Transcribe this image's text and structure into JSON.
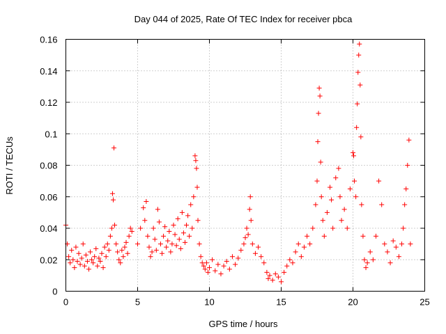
{
  "chart_data": {
    "type": "scatter",
    "title": "Day 044 of 2025, Rate Of TEC Index for receiver pbca",
    "xlabel": "GPS time / hours",
    "ylabel": "ROTI / TECUs",
    "xlim": [
      0,
      25
    ],
    "ylim": [
      0,
      0.16
    ],
    "xticks": [
      0,
      5,
      10,
      15,
      20,
      25
    ],
    "xtick_labels": [
      "0",
      "5",
      "10",
      "15",
      "20",
      "25"
    ],
    "yticks": [
      0,
      0.02,
      0.04,
      0.06,
      0.08,
      0.1,
      0.12,
      0.14,
      0.16
    ],
    "ytick_labels": [
      "0",
      "0.02",
      "0.04",
      "0.06",
      "0.08",
      "0.1",
      "0.12",
      "0.14",
      "0.16"
    ],
    "grid": true,
    "marker": "+",
    "color": "#ff0000",
    "series": [
      {
        "name": "ROTI",
        "points": [
          [
            0.0,
            0.042
          ],
          [
            0.1,
            0.03
          ],
          [
            0.2,
            0.022
          ],
          [
            0.3,
            0.018
          ],
          [
            0.4,
            0.026
          ],
          [
            0.5,
            0.02
          ],
          [
            0.6,
            0.015
          ],
          [
            0.7,
            0.028
          ],
          [
            0.8,
            0.019
          ],
          [
            0.9,
            0.024
          ],
          [
            1.0,
            0.017
          ],
          [
            1.1,
            0.021
          ],
          [
            1.2,
            0.03
          ],
          [
            1.3,
            0.016
          ],
          [
            1.4,
            0.023
          ],
          [
            1.5,
            0.019
          ],
          [
            1.6,
            0.014
          ],
          [
            1.7,
            0.025
          ],
          [
            1.8,
            0.02
          ],
          [
            1.9,
            0.018
          ],
          [
            2.0,
            0.022
          ],
          [
            2.1,
            0.027
          ],
          [
            2.2,
            0.016
          ],
          [
            2.3,
            0.021
          ],
          [
            2.4,
            0.019
          ],
          [
            2.5,
            0.024
          ],
          [
            2.6,
            0.015
          ],
          [
            2.7,
            0.028
          ],
          [
            2.8,
            0.022
          ],
          [
            2.9,
            0.03
          ],
          [
            3.0,
            0.026
          ],
          [
            3.1,
            0.035
          ],
          [
            3.2,
            0.04
          ],
          [
            3.25,
            0.062
          ],
          [
            3.3,
            0.058
          ],
          [
            3.35,
            0.091
          ],
          [
            3.4,
            0.042
          ],
          [
            3.5,
            0.03
          ],
          [
            3.6,
            0.025
          ],
          [
            3.7,
            0.02
          ],
          [
            3.8,
            0.018
          ],
          [
            3.9,
            0.026
          ],
          [
            4.0,
            0.022
          ],
          [
            4.1,
            0.028
          ],
          [
            4.2,
            0.031
          ],
          [
            4.3,
            0.024
          ],
          [
            4.4,
            0.035
          ],
          [
            4.5,
            0.04
          ],
          [
            4.6,
            0.038
          ],
          [
            5.0,
            0.03
          ],
          [
            5.2,
            0.04
          ],
          [
            5.4,
            0.053
          ],
          [
            5.5,
            0.045
          ],
          [
            5.6,
            0.057
          ],
          [
            5.7,
            0.035
          ],
          [
            5.8,
            0.028
          ],
          [
            5.9,
            0.022
          ],
          [
            6.0,
            0.025
          ],
          [
            6.1,
            0.04
          ],
          [
            6.2,
            0.033
          ],
          [
            6.3,
            0.026
          ],
          [
            6.4,
            0.052
          ],
          [
            6.5,
            0.044
          ],
          [
            6.6,
            0.03
          ],
          [
            6.7,
            0.024
          ],
          [
            6.8,
            0.035
          ],
          [
            6.9,
            0.041
          ],
          [
            7.0,
            0.028
          ],
          [
            7.1,
            0.032
          ],
          [
            7.2,
            0.038
          ],
          [
            7.3,
            0.025
          ],
          [
            7.4,
            0.03
          ],
          [
            7.5,
            0.042
          ],
          [
            7.6,
            0.036
          ],
          [
            7.7,
            0.029
          ],
          [
            7.8,
            0.046
          ],
          [
            7.9,
            0.033
          ],
          [
            8.0,
            0.027
          ],
          [
            8.1,
            0.05
          ],
          [
            8.2,
            0.037
          ],
          [
            8.3,
            0.031
          ],
          [
            8.4,
            0.042
          ],
          [
            8.5,
            0.048
          ],
          [
            8.6,
            0.035
          ],
          [
            8.7,
            0.055
          ],
          [
            8.8,
            0.04
          ],
          [
            8.9,
            0.06
          ],
          [
            9.0,
            0.086
          ],
          [
            9.05,
            0.083
          ],
          [
            9.1,
            0.078
          ],
          [
            9.15,
            0.066
          ],
          [
            9.2,
            0.045
          ],
          [
            9.3,
            0.03
          ],
          [
            9.4,
            0.022
          ],
          [
            9.5,
            0.018
          ],
          [
            9.6,
            0.016
          ],
          [
            9.7,
            0.014
          ],
          [
            9.8,
            0.018
          ],
          [
            9.9,
            0.012
          ],
          [
            10.0,
            0.015
          ],
          [
            10.2,
            0.02
          ],
          [
            10.4,
            0.013
          ],
          [
            10.6,
            0.017
          ],
          [
            10.8,
            0.011
          ],
          [
            11.0,
            0.016
          ],
          [
            11.2,
            0.019
          ],
          [
            11.4,
            0.014
          ],
          [
            11.6,
            0.022
          ],
          [
            11.8,
            0.017
          ],
          [
            12.0,
            0.021
          ],
          [
            12.2,
            0.026
          ],
          [
            12.4,
            0.03
          ],
          [
            12.5,
            0.034
          ],
          [
            12.6,
            0.04
          ],
          [
            12.7,
            0.036
          ],
          [
            12.8,
            0.052
          ],
          [
            12.85,
            0.06
          ],
          [
            12.9,
            0.045
          ],
          [
            13.0,
            0.03
          ],
          [
            13.2,
            0.024
          ],
          [
            13.4,
            0.028
          ],
          [
            13.6,
            0.022
          ],
          [
            13.8,
            0.018
          ],
          [
            14.0,
            0.012
          ],
          [
            14.1,
            0.008
          ],
          [
            14.2,
            0.01
          ],
          [
            14.4,
            0.007
          ],
          [
            14.6,
            0.011
          ],
          [
            14.8,
            0.009
          ],
          [
            15.0,
            0.006
          ],
          [
            15.2,
            0.012
          ],
          [
            15.4,
            0.016
          ],
          [
            15.6,
            0.02
          ],
          [
            15.8,
            0.018
          ],
          [
            16.0,
            0.025
          ],
          [
            16.2,
            0.03
          ],
          [
            16.4,
            0.022
          ],
          [
            16.6,
            0.028
          ],
          [
            16.8,
            0.035
          ],
          [
            17.0,
            0.03
          ],
          [
            17.2,
            0.04
          ],
          [
            17.4,
            0.055
          ],
          [
            17.5,
            0.07
          ],
          [
            17.55,
            0.095
          ],
          [
            17.6,
            0.113
          ],
          [
            17.65,
            0.129
          ],
          [
            17.7,
            0.124
          ],
          [
            17.75,
            0.082
          ],
          [
            17.8,
            0.06
          ],
          [
            17.9,
            0.045
          ],
          [
            18.0,
            0.035
          ],
          [
            18.2,
            0.05
          ],
          [
            18.4,
            0.066
          ],
          [
            18.5,
            0.058
          ],
          [
            18.6,
            0.04
          ],
          [
            18.8,
            0.072
          ],
          [
            19.0,
            0.078
          ],
          [
            19.1,
            0.06
          ],
          [
            19.2,
            0.045
          ],
          [
            19.4,
            0.052
          ],
          [
            19.6,
            0.04
          ],
          [
            19.8,
            0.065
          ],
          [
            20.0,
            0.088
          ],
          [
            20.05,
            0.086
          ],
          [
            20.1,
            0.07
          ],
          [
            20.2,
            0.06
          ],
          [
            20.25,
            0.104
          ],
          [
            20.3,
            0.119
          ],
          [
            20.35,
            0.139
          ],
          [
            20.4,
            0.15
          ],
          [
            20.45,
            0.157
          ],
          [
            20.5,
            0.131
          ],
          [
            20.55,
            0.098
          ],
          [
            20.6,
            0.055
          ],
          [
            20.7,
            0.035
          ],
          [
            20.8,
            0.02
          ],
          [
            20.9,
            0.015
          ],
          [
            21.0,
            0.018
          ],
          [
            21.2,
            0.025
          ],
          [
            21.4,
            0.02
          ],
          [
            21.6,
            0.035
          ],
          [
            21.8,
            0.07
          ],
          [
            22.0,
            0.055
          ],
          [
            22.2,
            0.03
          ],
          [
            22.4,
            0.025
          ],
          [
            22.6,
            0.018
          ],
          [
            22.8,
            0.032
          ],
          [
            23.0,
            0.028
          ],
          [
            23.2,
            0.022
          ],
          [
            23.4,
            0.03
          ],
          [
            23.5,
            0.04
          ],
          [
            23.6,
            0.055
          ],
          [
            23.7,
            0.065
          ],
          [
            23.8,
            0.08
          ],
          [
            23.9,
            0.096
          ],
          [
            24.0,
            0.03
          ]
        ]
      }
    ]
  }
}
